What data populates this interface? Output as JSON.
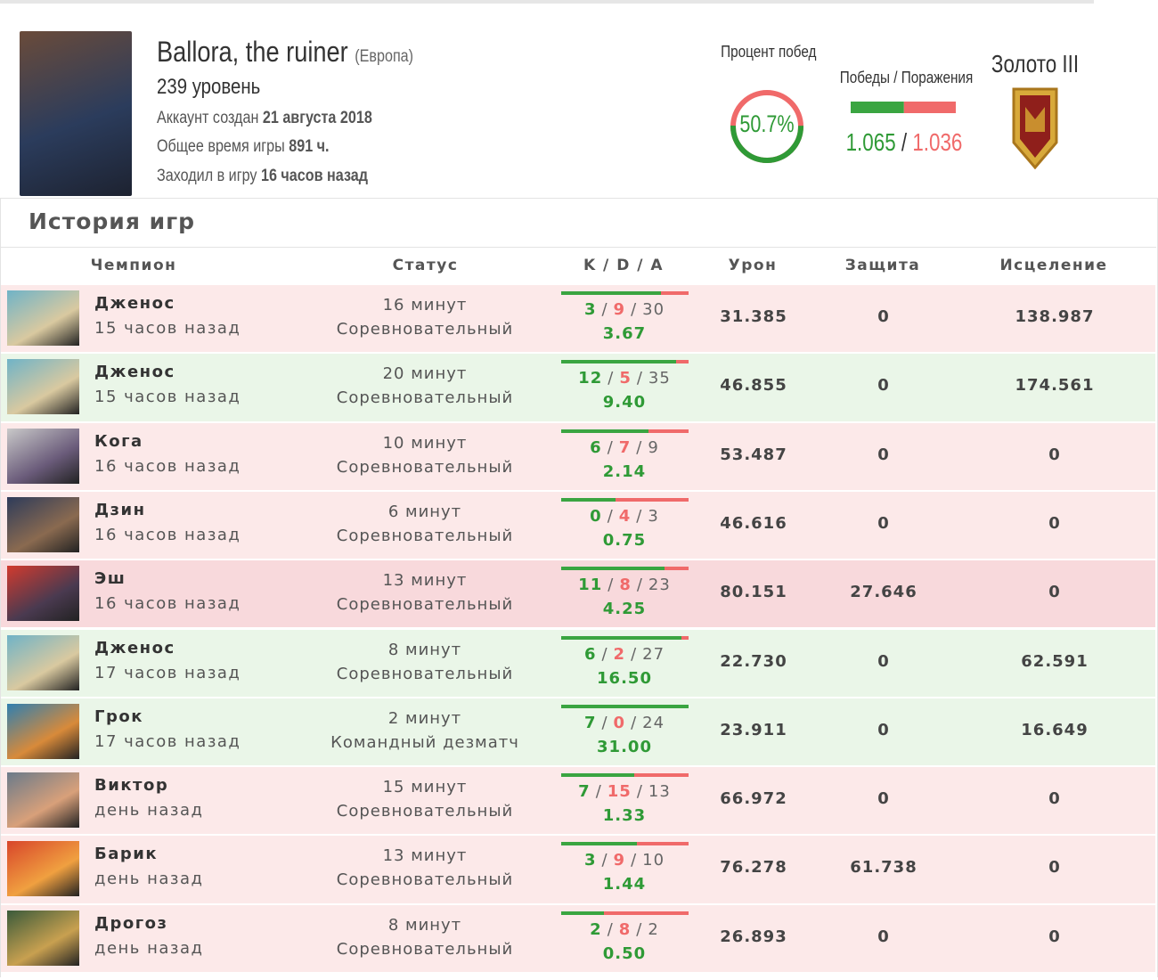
{
  "profile": {
    "name": "Ballora, the ruiner",
    "region": "(Европа)",
    "level": "239 уровень",
    "created_label": "Аккаунт создан",
    "created": "21 августа 2018",
    "playtime_label": "Общее время игры",
    "playtime": "891 ч.",
    "last_seen_label": "Заходил в игру",
    "last_seen": "16 часов назад"
  },
  "stats": {
    "win_rate_title": "Процент побед",
    "win_rate": {
      "value": 50.7,
      "label": "50.7%"
    },
    "wl_title": "Победы / Поражения",
    "wins": {
      "value": 1065,
      "label": "1.065"
    },
    "separator": "/",
    "losses": {
      "value": 1036,
      "label": "1.036"
    },
    "rank": "Золото III"
  },
  "history": {
    "title": "История игр",
    "columns": [
      "Чемпион",
      "Статус",
      "K / D / A",
      "Урон",
      "Защита",
      "Исцеление"
    ],
    "rows": [
      {
        "champion": "Дженос",
        "ago": "15 часов назад",
        "duration": "16 минут",
        "mode": "Соревновательный",
        "k": 3,
        "d": 9,
        "a": 30,
        "ratio": "3.67",
        "damage": "31.385",
        "shield": "0",
        "healing": "138.987",
        "background": "#fce9e9"
      },
      {
        "champion": "Дженос",
        "ago": "15 часов назад",
        "duration": "20 минут",
        "mode": "Соревновательный",
        "k": 12,
        "d": 5,
        "a": 35,
        "ratio": "9.40",
        "damage": "46.855",
        "shield": "0",
        "healing": "174.561",
        "background": "#eaf6e8"
      },
      {
        "champion": "Кога",
        "ago": "16 часов назад",
        "duration": "10 минут",
        "mode": "Соревновательный",
        "k": 6,
        "d": 7,
        "a": 9,
        "ratio": "2.14",
        "damage": "53.487",
        "shield": "0",
        "healing": "0",
        "background": "#fce9e9"
      },
      {
        "champion": "Дзин",
        "ago": "16 часов назад",
        "duration": "6 минут",
        "mode": "Соревновательный",
        "k": 0,
        "d": 4,
        "a": 3,
        "ratio": "0.75",
        "damage": "46.616",
        "shield": "0",
        "healing": "0",
        "background": "#fce9e9"
      },
      {
        "champion": "Эш",
        "ago": "16 часов назад",
        "duration": "13 минут",
        "mode": "Соревновательный",
        "k": 11,
        "d": 8,
        "a": 23,
        "ratio": "4.25",
        "damage": "80.151",
        "shield": "27.646",
        "healing": "0",
        "background": "#f8d9dc"
      },
      {
        "champion": "Дженос",
        "ago": "17 часов назад",
        "duration": "8 минут",
        "mode": "Соревновательный",
        "k": 6,
        "d": 2,
        "a": 27,
        "ratio": "16.50",
        "damage": "22.730",
        "shield": "0",
        "healing": "62.591",
        "background": "#eaf6e8"
      },
      {
        "champion": "Грок",
        "ago": "17 часов назад",
        "duration": "2 минут",
        "mode": "Командный дезматч",
        "k": 7,
        "d": 0,
        "a": 24,
        "ratio": "31.00",
        "damage": "23.911",
        "shield": "0",
        "healing": "16.649",
        "background": "#eaf6e8"
      },
      {
        "champion": "Виктор",
        "ago": "день назад",
        "duration": "15 минут",
        "mode": "Соревновательный",
        "k": 7,
        "d": 15,
        "a": 13,
        "ratio": "1.33",
        "damage": "66.972",
        "shield": "0",
        "healing": "0",
        "background": "#fce9e9"
      },
      {
        "champion": "Барик",
        "ago": "день назад",
        "duration": "13 минут",
        "mode": "Соревновательный",
        "k": 3,
        "d": 9,
        "a": 10,
        "ratio": "1.44",
        "damage": "76.278",
        "shield": "61.738",
        "healing": "0",
        "background": "#fce9e9"
      },
      {
        "champion": "Дрогоз",
        "ago": "день назад",
        "duration": "8 минут",
        "mode": "Соревновательный",
        "k": 2,
        "d": 8,
        "a": 2,
        "ratio": "0.50",
        "damage": "26.893",
        "shield": "0",
        "healing": "0",
        "background": "#fce9e9"
      }
    ]
  }
}
